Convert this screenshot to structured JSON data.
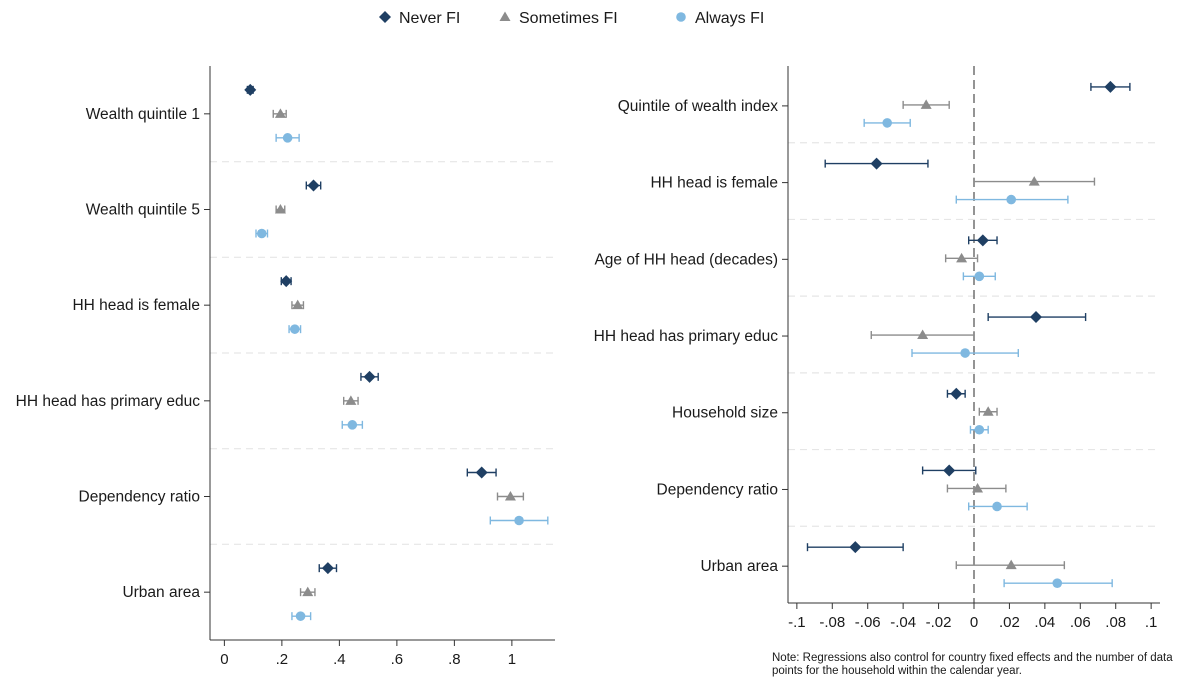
{
  "legend": {
    "entries": [
      {
        "label": "Never FI",
        "marker": "diamond",
        "color": "#1f3f63"
      },
      {
        "label": "Sometimes FI",
        "marker": "triangle",
        "color": "#8c8c8c"
      },
      {
        "label": "Always FI",
        "marker": "circle",
        "color": "#7fb8e0"
      }
    ]
  },
  "note": "Note: Regressions also control for country fixed effects and the number of data points for the household within the calendar year.",
  "chart_data": [
    {
      "type": "scatter",
      "title": "",
      "xlabel": "",
      "ylabel": "",
      "xlim": [
        -0.05,
        1.15
      ],
      "x_ticks": [
        0,
        0.2,
        0.4,
        0.6,
        0.8,
        1
      ],
      "x_tick_labels": [
        "0",
        ".2",
        ".4",
        ".6",
        ".8",
        "1"
      ],
      "reference_line": null,
      "categories": [
        "Wealth quintile 1",
        "Wealth quintile 5",
        "HH head is female",
        "HH head has primary educ",
        "Dependency ratio",
        "Urban area"
      ],
      "series": [
        {
          "name": "Never FI",
          "color": "#1f3f63",
          "marker": "diamond",
          "points": [
            {
              "est": 0.09,
              "lo": 0.08,
              "hi": 0.1
            },
            {
              "est": 0.31,
              "lo": 0.285,
              "hi": 0.335
            },
            {
              "est": 0.215,
              "lo": 0.198,
              "hi": 0.232
            },
            {
              "est": 0.505,
              "lo": 0.475,
              "hi": 0.535
            },
            {
              "est": 0.895,
              "lo": 0.845,
              "hi": 0.945
            },
            {
              "est": 0.36,
              "lo": 0.33,
              "hi": 0.39
            }
          ]
        },
        {
          "name": "Sometimes FI",
          "color": "#8c8c8c",
          "marker": "triangle",
          "points": [
            {
              "est": 0.195,
              "lo": 0.17,
              "hi": 0.215
            },
            {
              "est": 0.195,
              "lo": 0.18,
              "hi": 0.21
            },
            {
              "est": 0.255,
              "lo": 0.235,
              "hi": 0.275
            },
            {
              "est": 0.44,
              "lo": 0.415,
              "hi": 0.465
            },
            {
              "est": 0.995,
              "lo": 0.95,
              "hi": 1.04
            },
            {
              "est": 0.29,
              "lo": 0.265,
              "hi": 0.315
            }
          ]
        },
        {
          "name": "Always FI",
          "color": "#7fb8e0",
          "marker": "circle",
          "points": [
            {
              "est": 0.22,
              "lo": 0.18,
              "hi": 0.26
            },
            {
              "est": 0.13,
              "lo": 0.11,
              "hi": 0.15
            },
            {
              "est": 0.245,
              "lo": 0.225,
              "hi": 0.265
            },
            {
              "est": 0.445,
              "lo": 0.41,
              "hi": 0.48
            },
            {
              "est": 1.025,
              "lo": 0.925,
              "hi": 1.125
            },
            {
              "est": 0.265,
              "lo": 0.235,
              "hi": 0.3
            }
          ]
        }
      ]
    },
    {
      "type": "scatter",
      "title": "",
      "xlabel": "",
      "ylabel": "",
      "xlim": [
        -0.105,
        0.105
      ],
      "x_ticks": [
        -0.1,
        -0.08,
        -0.06,
        -0.04,
        -0.02,
        0,
        0.02,
        0.04,
        0.06,
        0.08,
        0.1
      ],
      "x_tick_labels": [
        "-.1",
        "-.08",
        "-.06",
        "-.04",
        "-.02",
        "0",
        ".02",
        ".04",
        ".06",
        ".08",
        ".1"
      ],
      "reference_line": 0,
      "categories": [
        "Quintile of wealth index",
        "HH head is female",
        "Age of HH head (decades)",
        "HH head has primary educ",
        "Household size",
        "Dependency ratio",
        "Urban area"
      ],
      "series": [
        {
          "name": "Never FI",
          "color": "#1f3f63",
          "marker": "diamond",
          "points": [
            {
              "est": 0.077,
              "lo": 0.066,
              "hi": 0.088
            },
            {
              "est": -0.055,
              "lo": -0.084,
              "hi": -0.026
            },
            {
              "est": 0.005,
              "lo": -0.003,
              "hi": 0.013
            },
            {
              "est": 0.035,
              "lo": 0.008,
              "hi": 0.063
            },
            {
              "est": -0.01,
              "lo": -0.015,
              "hi": -0.005
            },
            {
              "est": -0.014,
              "lo": -0.029,
              "hi": 0.001
            },
            {
              "est": -0.067,
              "lo": -0.094,
              "hi": -0.04
            }
          ]
        },
        {
          "name": "Sometimes FI",
          "color": "#8c8c8c",
          "marker": "triangle",
          "points": [
            {
              "est": -0.027,
              "lo": -0.04,
              "hi": -0.014
            },
            {
              "est": 0.034,
              "lo": 0.0,
              "hi": 0.068
            },
            {
              "est": -0.007,
              "lo": -0.016,
              "hi": 0.002
            },
            {
              "est": -0.029,
              "lo": -0.058,
              "hi": 0.0
            },
            {
              "est": 0.008,
              "lo": 0.003,
              "hi": 0.013
            },
            {
              "est": 0.002,
              "lo": -0.015,
              "hi": 0.018
            },
            {
              "est": 0.021,
              "lo": -0.01,
              "hi": 0.051
            }
          ]
        },
        {
          "name": "Always FI",
          "color": "#7fb8e0",
          "marker": "circle",
          "points": [
            {
              "est": -0.049,
              "lo": -0.062,
              "hi": -0.036
            },
            {
              "est": 0.021,
              "lo": -0.01,
              "hi": 0.053
            },
            {
              "est": 0.003,
              "lo": -0.006,
              "hi": 0.012
            },
            {
              "est": -0.005,
              "lo": -0.035,
              "hi": 0.025
            },
            {
              "est": 0.003,
              "lo": -0.002,
              "hi": 0.008
            },
            {
              "est": 0.013,
              "lo": -0.003,
              "hi": 0.03
            },
            {
              "est": 0.047,
              "lo": 0.017,
              "hi": 0.078
            }
          ]
        }
      ]
    }
  ]
}
